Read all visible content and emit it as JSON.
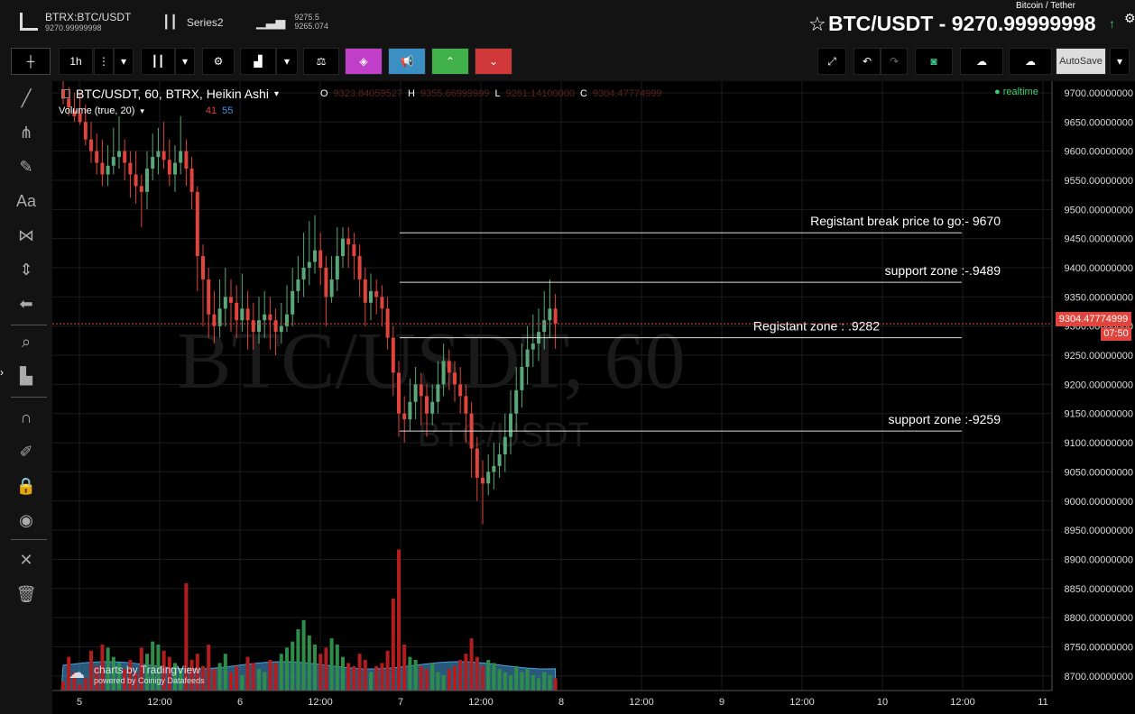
{
  "header": {
    "symbol": "BTRX:BTC/USDT",
    "symbol_price": "9270.99999998",
    "series_label": "Series2",
    "compare_hi": "9275.5",
    "compare_lo": "9265.074",
    "pair_name": "Bitcoin / Tether",
    "pair_title": "BTC/USDT - 9270.99999998",
    "trend_color": "#3cd070"
  },
  "toolbar": {
    "interval": "1h",
    "autosave": "AutoSave"
  },
  "legend": {
    "main": "BTC/USDT, 60, BTRX, Heikin Ashi",
    "o_label": "O",
    "o_value": "9323.84059527",
    "h_label": "H",
    "h_value": "9355.66999999",
    "l_label": "L",
    "l_value": "9261.14100000",
    "c_label": "C",
    "c_value": "9304.47774999",
    "volume": "Volume (true, 20)",
    "vol_a": "41",
    "vol_b": "55",
    "realtime": "realtime"
  },
  "watermark": {
    "big": "BTC/USDT, 60",
    "small": "BTC/USDT"
  },
  "branding": {
    "line1": "charts by TradingView",
    "line2": "powered by Coinigy Datafeeds"
  },
  "price_tag": {
    "price": "9304.47774999",
    "countdown": "07:50"
  },
  "colors": {
    "up": "#5aa879",
    "down": "#e0443c",
    "up_vol": "#2f8d4a",
    "down_vol": "#b31d1d",
    "vol_area": "#4aa3df"
  },
  "chart_data": {
    "type": "candlestick",
    "x_ticks": [
      "5",
      "12:00",
      "6",
      "12:00",
      "7",
      "12:00",
      "8",
      "12:00",
      "9",
      "12:00",
      "10",
      "12:00",
      "11"
    ],
    "y_ticks": [
      "9700.00000000",
      "9650.00000000",
      "9600.00000000",
      "9550.00000000",
      "9500.00000000",
      "9450.00000000",
      "9400.00000000",
      "9350.00000000",
      "9300.00000000",
      "9250.00000000",
      "9200.00000000",
      "9150.00000000",
      "9100.00000000",
      "9050.00000000",
      "9000.00000000",
      "8950.00000000",
      "8900.00000000",
      "8850.00000000",
      "8800.00000000",
      "8750.00000000",
      "8700.00000000"
    ],
    "ylim": [
      8675,
      9720
    ],
    "candles": [
      [
        9705,
        9690,
        9730,
        9680
      ],
      [
        9690,
        9675,
        9710,
        9660
      ],
      [
        9670,
        9660,
        9700,
        9650
      ],
      [
        9665,
        9650,
        9700,
        9645
      ],
      [
        9650,
        9620,
        9680,
        9610
      ],
      [
        9620,
        9600,
        9650,
        9580
      ],
      [
        9600,
        9580,
        9630,
        9560
      ],
      [
        9580,
        9560,
        9620,
        9540
      ],
      [
        9560,
        9575,
        9610,
        9540
      ],
      [
        9575,
        9590,
        9640,
        9560
      ],
      [
        9590,
        9600,
        9660,
        9570
      ],
      [
        9600,
        9580,
        9620,
        9550
      ],
      [
        9580,
        9560,
        9600,
        9520
      ],
      [
        9560,
        9540,
        9600,
        9510
      ],
      [
        9540,
        9530,
        9560,
        9470
      ],
      [
        9530,
        9570,
        9600,
        9500
      ],
      [
        9570,
        9590,
        9630,
        9550
      ],
      [
        9590,
        9600,
        9640,
        9560
      ],
      [
        9600,
        9585,
        9650,
        9570
      ],
      [
        9585,
        9560,
        9620,
        9540
      ],
      [
        9560,
        9580,
        9610,
        9530
      ],
      [
        9580,
        9600,
        9660,
        9560
      ],
      [
        9600,
        9570,
        9620,
        9540
      ],
      [
        9570,
        9530,
        9590,
        9500
      ],
      [
        9530,
        9420,
        9540,
        9360
      ],
      [
        9420,
        9380,
        9440,
        9300
      ],
      [
        9380,
        9320,
        9400,
        9280
      ],
      [
        9320,
        9300,
        9360,
        9270
      ],
      [
        9300,
        9330,
        9380,
        9280
      ],
      [
        9330,
        9350,
        9400,
        9300
      ],
      [
        9350,
        9340,
        9380,
        9290
      ],
      [
        9340,
        9310,
        9370,
        9280
      ],
      [
        9310,
        9330,
        9390,
        9290
      ],
      [
        9330,
        9310,
        9360,
        9260
      ],
      [
        9310,
        9290,
        9340,
        9260
      ],
      [
        9290,
        9310,
        9350,
        9270
      ],
      [
        9310,
        9320,
        9360,
        9280
      ],
      [
        9320,
        9310,
        9350,
        9260
      ],
      [
        9310,
        9290,
        9330,
        9250
      ],
      [
        9290,
        9300,
        9340,
        9270
      ],
      [
        9300,
        9320,
        9370,
        9290
      ],
      [
        9320,
        9360,
        9400,
        9300
      ],
      [
        9360,
        9380,
        9420,
        9340
      ],
      [
        9380,
        9400,
        9460,
        9350
      ],
      [
        9400,
        9410,
        9480,
        9370
      ],
      [
        9410,
        9430,
        9490,
        9390
      ],
      [
        9430,
        9400,
        9460,
        9370
      ],
      [
        9400,
        9350,
        9420,
        9300
      ],
      [
        9350,
        9380,
        9420,
        9340
      ],
      [
        9380,
        9420,
        9470,
        9360
      ],
      [
        9420,
        9450,
        9470,
        9400
      ],
      [
        9450,
        9440,
        9470,
        9400
      ],
      [
        9440,
        9420,
        9460,
        9380
      ],
      [
        9420,
        9380,
        9440,
        9350
      ],
      [
        9380,
        9340,
        9400,
        9300
      ],
      [
        9340,
        9360,
        9390,
        9310
      ],
      [
        9360,
        9350,
        9380,
        9320
      ],
      [
        9350,
        9330,
        9370,
        9300
      ],
      [
        9330,
        9280,
        9350,
        9260
      ],
      [
        9280,
        9220,
        9300,
        9180
      ],
      [
        9220,
        9150,
        9240,
        9110
      ],
      [
        9150,
        9140,
        9180,
        9100
      ],
      [
        9140,
        9170,
        9210,
        9120
      ],
      [
        9170,
        9200,
        9230,
        9140
      ],
      [
        9200,
        9180,
        9220,
        9130
      ],
      [
        9180,
        9150,
        9200,
        9110
      ],
      [
        9150,
        9170,
        9200,
        9130
      ],
      [
        9170,
        9200,
        9240,
        9150
      ],
      [
        9200,
        9240,
        9270,
        9180
      ],
      [
        9240,
        9220,
        9260,
        9190
      ],
      [
        9220,
        9200,
        9240,
        9170
      ],
      [
        9200,
        9180,
        9230,
        9150
      ],
      [
        9180,
        9150,
        9200,
        9100
      ],
      [
        9150,
        9090,
        9170,
        9040
      ],
      [
        9090,
        9040,
        9110,
        9000
      ],
      [
        9040,
        9030,
        9070,
        8960
      ],
      [
        9030,
        9050,
        9080,
        9010
      ],
      [
        9050,
        9060,
        9100,
        9020
      ],
      [
        9060,
        9080,
        9100,
        9040
      ],
      [
        9080,
        9110,
        9150,
        9050
      ],
      [
        9110,
        9150,
        9190,
        9080
      ],
      [
        9150,
        9190,
        9230,
        9120
      ],
      [
        9190,
        9230,
        9270,
        9160
      ],
      [
        9230,
        9260,
        9300,
        9200
      ],
      [
        9260,
        9270,
        9320,
        9230
      ],
      [
        9270,
        9290,
        9330,
        9240
      ],
      [
        9290,
        9310,
        9360,
        9260
      ],
      [
        9310,
        9330,
        9380,
        9280
      ],
      [
        9330,
        9304,
        9355,
        9261
      ]
    ],
    "volumes": [
      6,
      22,
      12,
      4,
      8,
      26,
      16,
      30,
      28,
      22,
      18,
      14,
      20,
      12,
      28,
      24,
      32,
      30,
      26,
      22,
      18,
      14,
      70,
      20,
      24,
      16,
      30,
      14,
      18,
      24,
      12,
      16,
      10,
      22,
      18,
      14,
      12,
      20,
      18,
      24,
      28,
      32,
      40,
      46,
      36,
      30,
      24,
      28,
      34,
      30,
      22,
      18,
      16,
      24,
      20,
      12,
      16,
      18,
      26,
      60,
      92,
      30,
      22,
      20,
      16,
      14,
      18,
      12,
      10,
      14,
      16,
      20,
      24,
      34,
      22,
      16,
      20,
      18,
      14,
      12,
      10,
      16,
      12,
      14,
      10,
      8,
      12,
      10,
      8
    ],
    "annotations": [
      {
        "text": "Registant break price to go:- 9670",
        "price": 9460
      },
      {
        "text": "support zone  :-.9489",
        "price": 9375
      },
      {
        "text": "Registant zone : .9282",
        "price": 9280
      },
      {
        "text": "support zone    :-9259",
        "price": 9120
      }
    ]
  }
}
